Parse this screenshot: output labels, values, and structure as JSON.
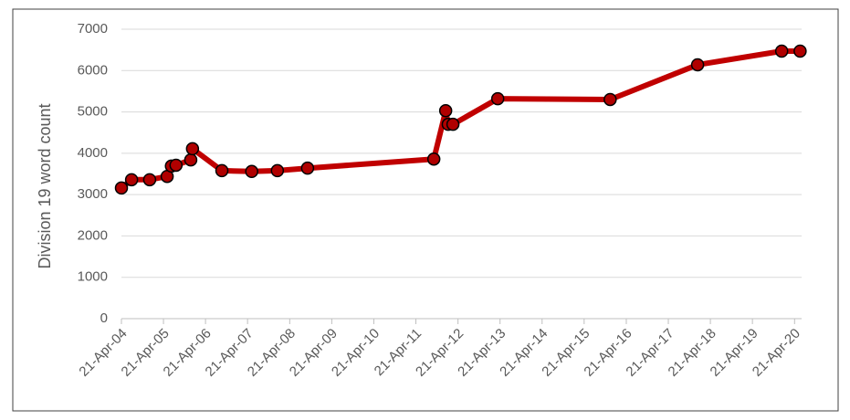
{
  "chart_data": {
    "type": "line",
    "y_label": "Division 19 word count",
    "x": [
      "2004-04-21",
      "2004-07-18",
      "2004-12-22",
      "2005-05-23",
      "2005-06-29",
      "2005-08-08",
      "2005-12-14",
      "2005-12-29",
      "2006-09-10",
      "2007-05-27",
      "2008-01-05",
      "2008-09-23",
      "2011-09-24",
      "2012-01-05",
      "2012-01-27",
      "2012-03-08",
      "2013-04-01",
      "2015-12-03",
      "2017-12-31",
      "2019-12-31",
      "2020-06-08"
    ],
    "values": [
      3160,
      3360,
      3360,
      3440,
      3690,
      3710,
      3840,
      4110,
      3580,
      3560,
      3580,
      3640,
      3860,
      5030,
      4700,
      4700,
      5320,
      5300,
      6140,
      6470,
      6470
    ],
    "color": "#c00000",
    "marker_color": "#b00000",
    "ylim": [
      0,
      7000
    ],
    "yticks": [
      0,
      1000,
      2000,
      3000,
      4000,
      5000,
      6000,
      7000
    ],
    "xlim": [
      "2004-04-21",
      "2020-06-21"
    ],
    "xticks": [
      {
        "value": "2004-04-21",
        "label": "21-Apr-04"
      },
      {
        "value": "2005-04-21",
        "label": "21-Apr-05"
      },
      {
        "value": "2006-04-21",
        "label": "21-Apr-06"
      },
      {
        "value": "2007-04-21",
        "label": "21-Apr-07"
      },
      {
        "value": "2008-04-21",
        "label": "21-Apr-08"
      },
      {
        "value": "2009-04-21",
        "label": "21-Apr-09"
      },
      {
        "value": "2010-04-21",
        "label": "21-Apr-10"
      },
      {
        "value": "2011-04-21",
        "label": "21-Apr-11"
      },
      {
        "value": "2012-04-21",
        "label": "21-Apr-12"
      },
      {
        "value": "2013-04-21",
        "label": "21-Apr-13"
      },
      {
        "value": "2014-04-21",
        "label": "21-Apr-14"
      },
      {
        "value": "2015-04-21",
        "label": "21-Apr-15"
      },
      {
        "value": "2016-04-21",
        "label": "21-Apr-16"
      },
      {
        "value": "2017-04-21",
        "label": "21-Apr-17"
      },
      {
        "value": "2018-04-21",
        "label": "21-Apr-18"
      },
      {
        "value": "2019-04-21",
        "label": "21-Apr-19"
      },
      {
        "value": "2020-04-21",
        "label": "21-Apr-20"
      }
    ],
    "grid": true
  }
}
